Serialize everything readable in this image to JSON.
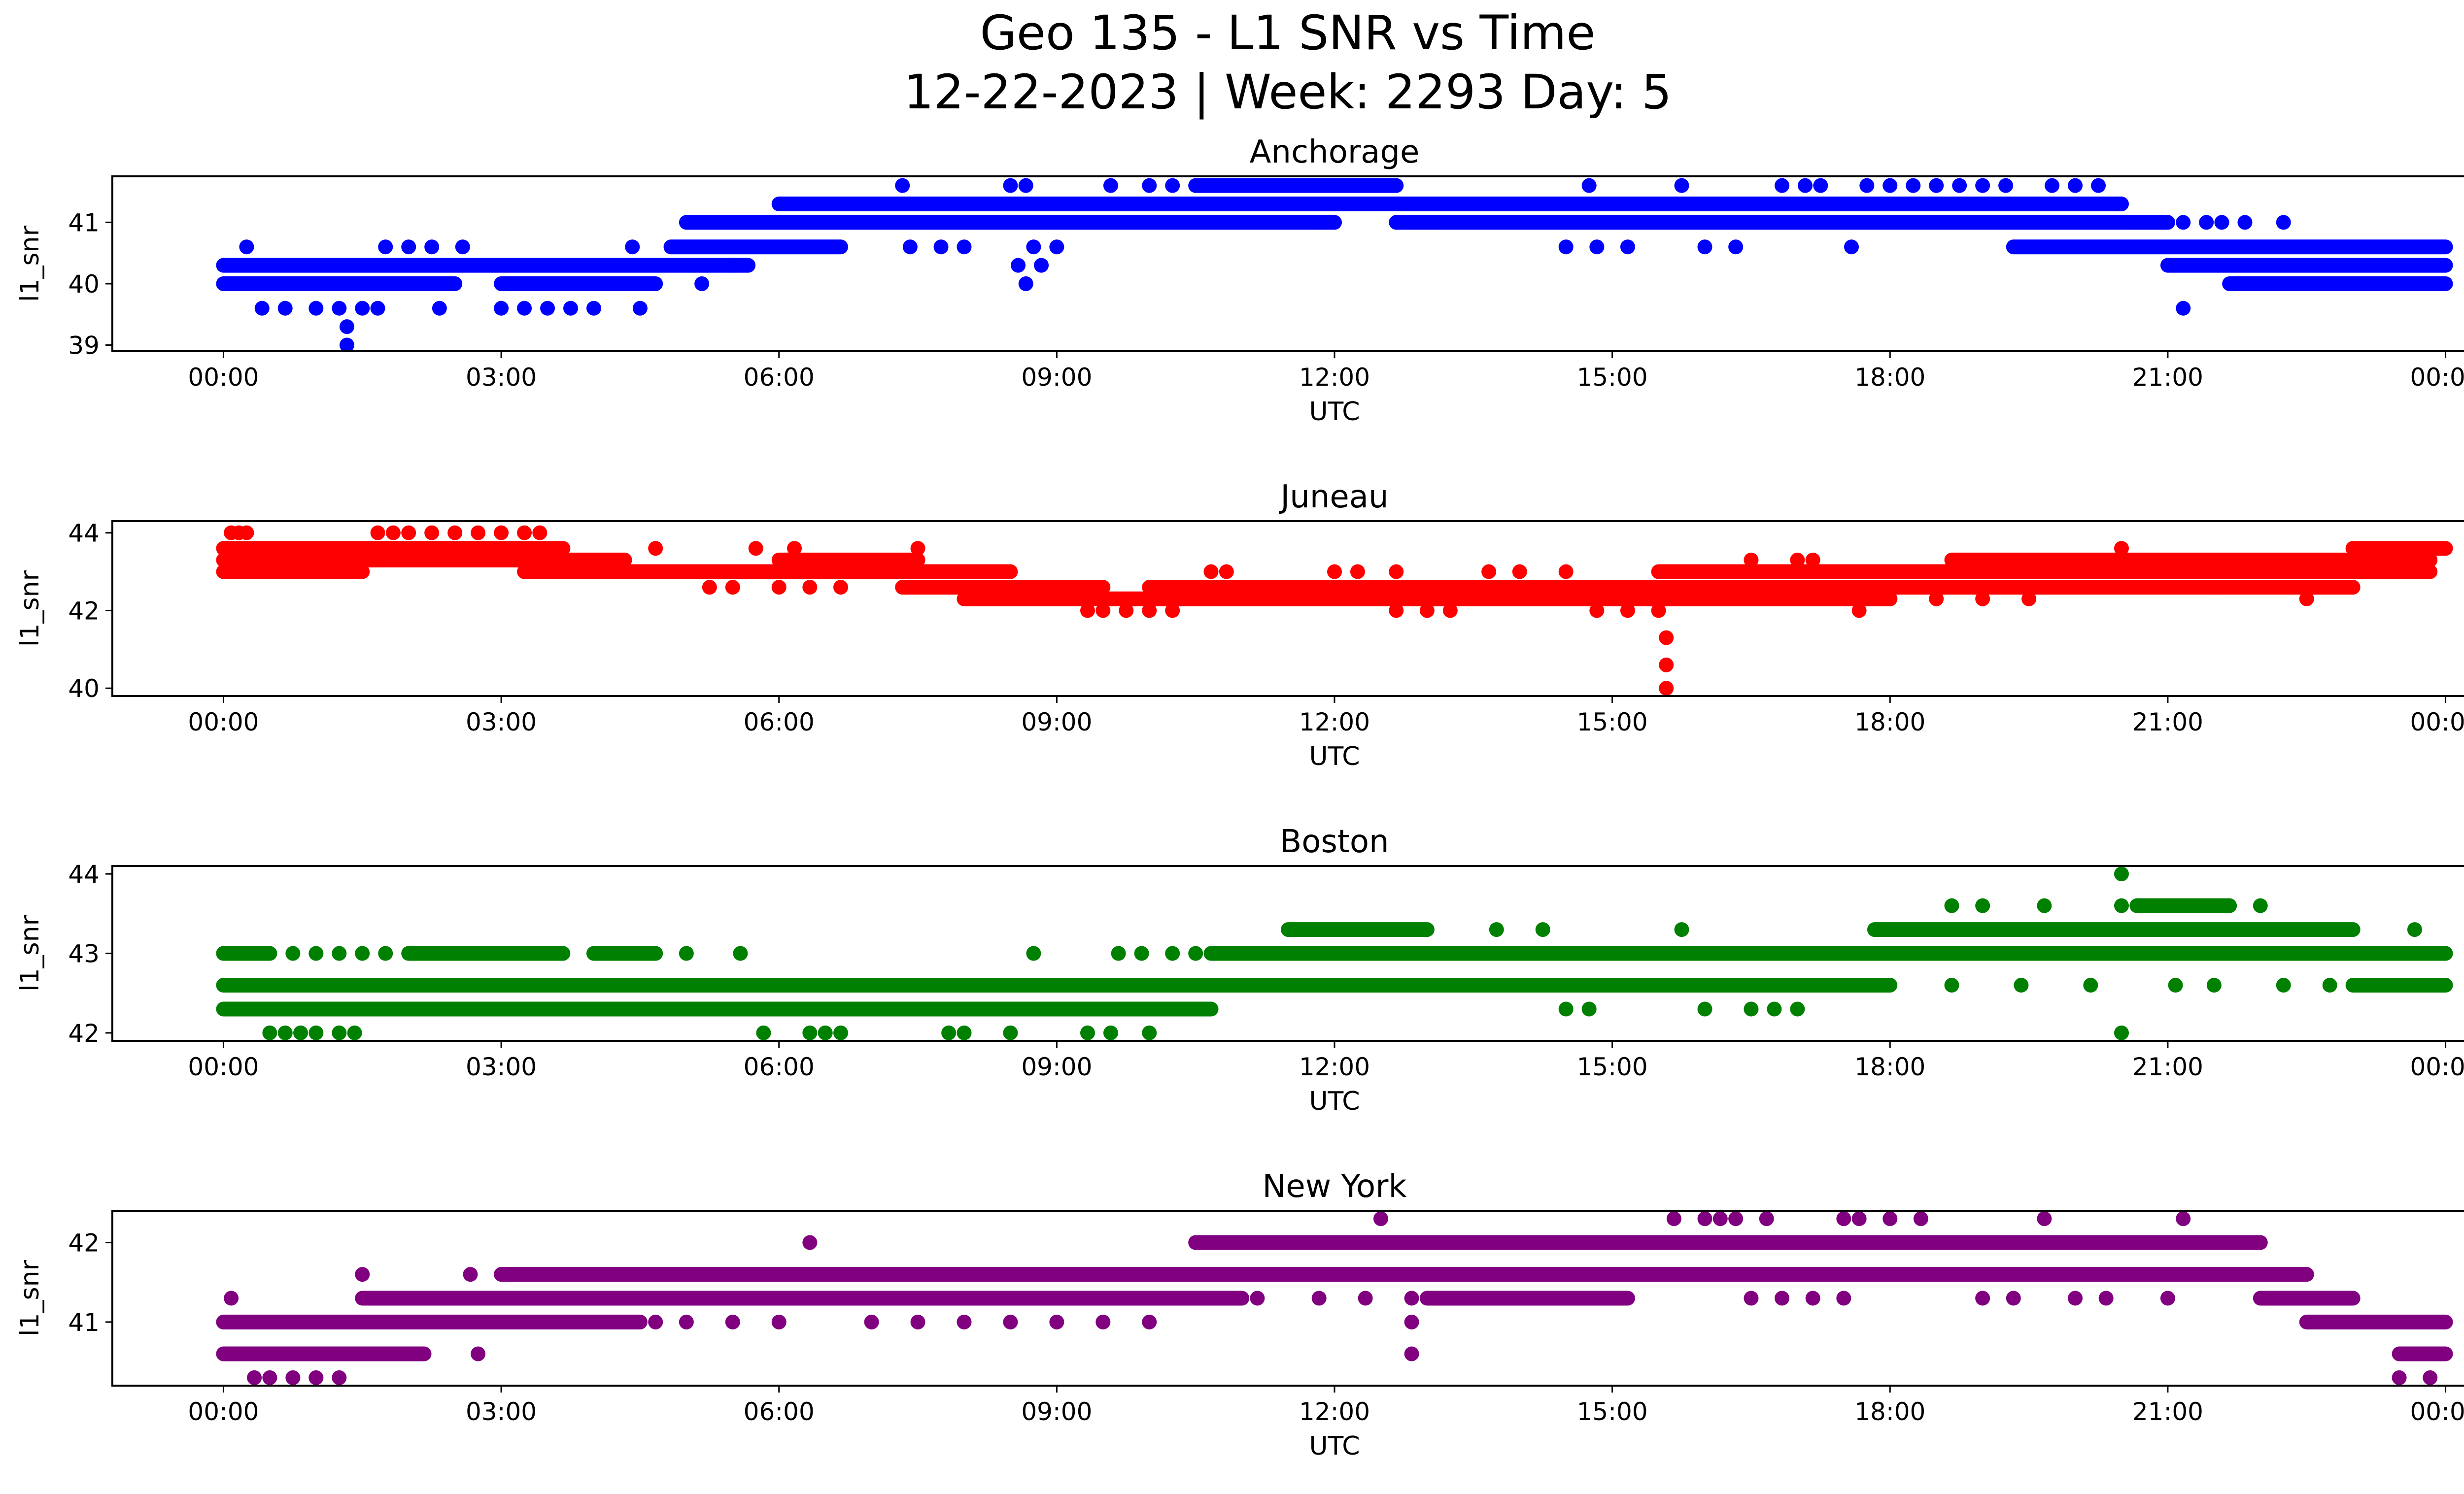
{
  "figure": {
    "title_line1": "Geo 135 - L1 SNR vs Time",
    "title_line2": "12-22-2023 | Week: 2293 Day: 5"
  },
  "chart_data": [
    {
      "type": "scatter",
      "title": "Anchorage",
      "xlabel": "UTC",
      "ylabel": "l1_snr",
      "color": "#0000ff",
      "xlim": [
        "00:00",
        "24:00"
      ],
      "ylim": [
        38.9,
        41.75
      ],
      "xticks": [
        "00:00",
        "03:00",
        "06:00",
        "09:00",
        "12:00",
        "15:00",
        "18:00",
        "21:00",
        "00:00"
      ],
      "yticks": [
        39,
        40,
        41
      ],
      "bands": [
        {
          "y": 40.0,
          "from": "00:00",
          "to": "02:30"
        },
        {
          "y": 40.0,
          "from": "03:00",
          "to": "04:40"
        },
        {
          "y": 40.0,
          "from": "21:40",
          "to": "24:00"
        },
        {
          "y": 40.3,
          "from": "00:00",
          "to": "05:40"
        },
        {
          "y": 40.3,
          "from": "21:00",
          "to": "24:00"
        },
        {
          "y": 40.6,
          "from": "04:50",
          "to": "06:40"
        },
        {
          "y": 40.6,
          "from": "19:20",
          "to": "24:00"
        },
        {
          "y": 41.0,
          "from": "05:00",
          "to": "12:00"
        },
        {
          "y": 41.0,
          "from": "12:40",
          "to": "21:00"
        },
        {
          "y": 41.3,
          "from": "06:00",
          "to": "20:30"
        },
        {
          "y": 41.6,
          "from": "10:30",
          "to": "12:40"
        }
      ],
      "points": [
        [
          "00:15",
          40.6
        ],
        [
          "00:25",
          39.6
        ],
        [
          "00:40",
          39.6
        ],
        [
          "01:00",
          39.6
        ],
        [
          "01:15",
          39.6
        ],
        [
          "01:20",
          39.3
        ],
        [
          "01:20",
          39.0
        ],
        [
          "01:30",
          39.6
        ],
        [
          "01:40",
          39.6
        ],
        [
          "01:45",
          40.6
        ],
        [
          "02:00",
          40.6
        ],
        [
          "02:15",
          40.6
        ],
        [
          "02:20",
          39.6
        ],
        [
          "02:35",
          40.6
        ],
        [
          "03:00",
          39.6
        ],
        [
          "03:15",
          39.6
        ],
        [
          "03:30",
          39.6
        ],
        [
          "03:45",
          39.6
        ],
        [
          "04:00",
          39.6
        ],
        [
          "04:25",
          40.6
        ],
        [
          "04:30",
          39.6
        ],
        [
          "05:10",
          40.0
        ],
        [
          "05:30",
          40.3
        ],
        [
          "07:20",
          41.6
        ],
        [
          "07:25",
          40.6
        ],
        [
          "07:45",
          40.6
        ],
        [
          "08:00",
          40.6
        ],
        [
          "08:30",
          41.6
        ],
        [
          "08:40",
          41.6
        ],
        [
          "08:45",
          40.6
        ],
        [
          "08:35",
          40.3
        ],
        [
          "08:40",
          40.0
        ],
        [
          "08:50",
          40.3
        ],
        [
          "09:00",
          40.6
        ],
        [
          "09:35",
          41.6
        ],
        [
          "10:00",
          41.6
        ],
        [
          "10:15",
          41.6
        ],
        [
          "14:45",
          41.6
        ],
        [
          "14:30",
          40.6
        ],
        [
          "14:50",
          40.6
        ],
        [
          "15:10",
          40.6
        ],
        [
          "15:45",
          41.6
        ],
        [
          "16:00",
          40.6
        ],
        [
          "16:20",
          40.6
        ],
        [
          "16:50",
          41.6
        ],
        [
          "17:05",
          41.6
        ],
        [
          "17:15",
          41.6
        ],
        [
          "17:35",
          40.6
        ],
        [
          "17:45",
          41.6
        ],
        [
          "18:00",
          41.6
        ],
        [
          "18:15",
          41.6
        ],
        [
          "18:30",
          41.6
        ],
        [
          "18:45",
          41.6
        ],
        [
          "19:00",
          41.6
        ],
        [
          "19:15",
          41.6
        ],
        [
          "19:45",
          41.6
        ],
        [
          "20:00",
          41.6
        ],
        [
          "20:15",
          41.6
        ],
        [
          "21:00",
          41.0
        ],
        [
          "21:10",
          41.0
        ],
        [
          "21:10",
          39.6
        ],
        [
          "21:25",
          41.0
        ],
        [
          "21:35",
          41.0
        ],
        [
          "21:50",
          41.0
        ],
        [
          "22:15",
          41.0
        ],
        [
          "22:30",
          40.0
        ]
      ]
    },
    {
      "type": "scatter",
      "title": "Juneau",
      "xlabel": "UTC",
      "ylabel": "l1_snr",
      "color": "#ff0000",
      "xlim": [
        "00:00",
        "24:00"
      ],
      "ylim": [
        39.8,
        44.3
      ],
      "xticks": [
        "00:00",
        "03:00",
        "06:00",
        "09:00",
        "12:00",
        "15:00",
        "18:00",
        "21:00",
        "00:00"
      ],
      "yticks": [
        40,
        42,
        44
      ],
      "bands": [
        {
          "y": 43.0,
          "from": "00:00",
          "to": "01:30"
        },
        {
          "y": 43.0,
          "from": "03:15",
          "to": "08:30"
        },
        {
          "y": 43.0,
          "from": "15:30",
          "to": "23:50"
        },
        {
          "y": 43.3,
          "from": "00:00",
          "to": "04:20"
        },
        {
          "y": 43.3,
          "from": "06:00",
          "to": "07:30"
        },
        {
          "y": 43.3,
          "from": "18:40",
          "to": "23:50"
        },
        {
          "y": 43.6,
          "from": "00:00",
          "to": "03:40"
        },
        {
          "y": 43.6,
          "from": "23:00",
          "to": "24:00"
        },
        {
          "y": 42.6,
          "from": "07:20",
          "to": "09:30"
        },
        {
          "y": 42.6,
          "from": "17:30",
          "to": "23:00"
        },
        {
          "y": 42.3,
          "from": "08:00",
          "to": "18:00"
        },
        {
          "y": 42.6,
          "from": "10:00",
          "to": "17:30"
        }
      ],
      "points": [
        [
          "00:05",
          44.0
        ],
        [
          "00:10",
          44.0
        ],
        [
          "00:15",
          44.0
        ],
        [
          "01:40",
          44.0
        ],
        [
          "01:50",
          44.0
        ],
        [
          "02:00",
          44.0
        ],
        [
          "02:15",
          44.0
        ],
        [
          "02:30",
          44.0
        ],
        [
          "02:45",
          44.0
        ],
        [
          "03:00",
          44.0
        ],
        [
          "03:15",
          44.0
        ],
        [
          "03:25",
          44.0
        ],
        [
          "04:40",
          43.6
        ],
        [
          "05:15",
          42.6
        ],
        [
          "05:30",
          42.6
        ],
        [
          "05:45",
          43.6
        ],
        [
          "06:00",
          42.6
        ],
        [
          "06:10",
          43.6
        ],
        [
          "06:20",
          42.6
        ],
        [
          "06:40",
          42.6
        ],
        [
          "07:30",
          43.6
        ],
        [
          "09:20",
          42.0
        ],
        [
          "09:30",
          42.0
        ],
        [
          "09:45",
          42.0
        ],
        [
          "10:00",
          42.0
        ],
        [
          "10:15",
          42.0
        ],
        [
          "10:40",
          43.0
        ],
        [
          "10:50",
          43.0
        ],
        [
          "12:00",
          43.0
        ],
        [
          "12:15",
          43.0
        ],
        [
          "12:40",
          43.0
        ],
        [
          "12:40",
          42.0
        ],
        [
          "13:00",
          42.0
        ],
        [
          "13:15",
          42.0
        ],
        [
          "13:40",
          43.0
        ],
        [
          "14:00",
          43.0
        ],
        [
          "14:30",
          43.0
        ],
        [
          "14:50",
          42.0
        ],
        [
          "15:10",
          42.0
        ],
        [
          "15:30",
          42.0
        ],
        [
          "15:35",
          41.3
        ],
        [
          "15:35",
          40.6
        ],
        [
          "15:35",
          40.0
        ],
        [
          "16:30",
          43.3
        ],
        [
          "17:00",
          43.3
        ],
        [
          "17:10",
          43.3
        ],
        [
          "17:40",
          42.0
        ],
        [
          "18:00",
          42.3
        ],
        [
          "18:30",
          42.3
        ],
        [
          "19:00",
          42.3
        ],
        [
          "19:30",
          42.3
        ],
        [
          "20:30",
          43.6
        ],
        [
          "21:30",
          42.6
        ],
        [
          "22:30",
          42.3
        ],
        [
          "23:45",
          43.0
        ]
      ]
    },
    {
      "type": "scatter",
      "title": "Boston",
      "xlabel": "UTC",
      "ylabel": "l1_snr",
      "color": "#008000",
      "xlim": [
        "00:00",
        "24:00"
      ],
      "ylim": [
        41.9,
        44.1
      ],
      "xticks": [
        "00:00",
        "03:00",
        "06:00",
        "09:00",
        "12:00",
        "15:00",
        "18:00",
        "21:00",
        "00:00"
      ],
      "yticks": [
        42,
        43,
        44
      ],
      "bands": [
        {
          "y": 42.3,
          "from": "00:00",
          "to": "10:40"
        },
        {
          "y": 42.6,
          "from": "00:00",
          "to": "18:00"
        },
        {
          "y": 42.6,
          "from": "23:00",
          "to": "24:00"
        },
        {
          "y": 43.0,
          "from": "10:40",
          "to": "24:00"
        },
        {
          "y": 43.3,
          "from": "11:30",
          "to": "13:00"
        },
        {
          "y": 43.3,
          "from": "17:50",
          "to": "23:00"
        },
        {
          "y": 43.6,
          "from": "20:40",
          "to": "21:40"
        },
        {
          "y": 43.0,
          "from": "00:00",
          "to": "00:30"
        },
        {
          "y": 43.0,
          "from": "02:00",
          "to": "03:40"
        },
        {
          "y": 43.0,
          "from": "04:00",
          "to": "04:40"
        }
      ],
      "points": [
        [
          "00:45",
          43.0
        ],
        [
          "01:00",
          43.0
        ],
        [
          "01:15",
          43.0
        ],
        [
          "01:30",
          43.0
        ],
        [
          "01:45",
          43.0
        ],
        [
          "05:00",
          43.0
        ],
        [
          "05:35",
          43.0
        ],
        [
          "08:45",
          43.0
        ],
        [
          "09:40",
          43.0
        ],
        [
          "09:55",
          43.0
        ],
        [
          "10:15",
          43.0
        ],
        [
          "10:30",
          43.0
        ],
        [
          "00:30",
          42.0
        ],
        [
          "00:40",
          42.0
        ],
        [
          "00:50",
          42.0
        ],
        [
          "01:00",
          42.0
        ],
        [
          "01:15",
          42.0
        ],
        [
          "01:25",
          42.0
        ],
        [
          "05:50",
          42.0
        ],
        [
          "06:20",
          42.0
        ],
        [
          "06:30",
          42.0
        ],
        [
          "06:40",
          42.0
        ],
        [
          "07:50",
          42.0
        ],
        [
          "08:00",
          42.0
        ],
        [
          "08:30",
          42.0
        ],
        [
          "09:20",
          42.0
        ],
        [
          "09:35",
          42.0
        ],
        [
          "10:00",
          42.0
        ],
        [
          "14:15",
          43.3
        ],
        [
          "13:45",
          43.3
        ],
        [
          "15:45",
          43.3
        ],
        [
          "14:30",
          42.3
        ],
        [
          "14:45",
          42.3
        ],
        [
          "16:00",
          42.3
        ],
        [
          "16:30",
          42.3
        ],
        [
          "16:45",
          42.3
        ],
        [
          "17:00",
          42.3
        ],
        [
          "18:40",
          43.6
        ],
        [
          "19:00",
          43.6
        ],
        [
          "19:40",
          43.6
        ],
        [
          "20:30",
          44.0
        ],
        [
          "20:30",
          43.6
        ],
        [
          "20:30",
          42.0
        ],
        [
          "18:40",
          42.6
        ],
        [
          "19:25",
          42.6
        ],
        [
          "20:10",
          42.6
        ],
        [
          "21:05",
          42.6
        ],
        [
          "21:30",
          42.6
        ],
        [
          "22:00",
          43.6
        ],
        [
          "22:15",
          42.6
        ],
        [
          "22:45",
          42.6
        ],
        [
          "23:40",
          43.3
        ]
      ]
    },
    {
      "type": "scatter",
      "title": "New York",
      "xlabel": "UTC",
      "ylabel": "l1_snr",
      "color": "#800080",
      "xlim": [
        "00:00",
        "24:00"
      ],
      "ylim": [
        40.2,
        42.4
      ],
      "xticks": [
        "00:00",
        "03:00",
        "06:00",
        "09:00",
        "12:00",
        "15:00",
        "18:00",
        "21:00",
        "00:00"
      ],
      "yticks": [
        41,
        42
      ],
      "bands": [
        {
          "y": 40.6,
          "from": "00:00",
          "to": "02:10"
        },
        {
          "y": 40.6,
          "from": "23:30",
          "to": "24:00"
        },
        {
          "y": 41.0,
          "from": "00:00",
          "to": "04:30"
        },
        {
          "y": 41.0,
          "from": "22:30",
          "to": "24:00"
        },
        {
          "y": 41.3,
          "from": "01:30",
          "to": "11:00"
        },
        {
          "y": 41.3,
          "from": "13:00",
          "to": "15:10"
        },
        {
          "y": 41.3,
          "from": "22:00",
          "to": "23:00"
        },
        {
          "y": 41.6,
          "from": "03:00",
          "to": "22:30"
        },
        {
          "y": 42.0,
          "from": "10:30",
          "to": "22:00"
        }
      ],
      "points": [
        [
          "00:05",
          41.3
        ],
        [
          "00:20",
          40.3
        ],
        [
          "00:30",
          40.3
        ],
        [
          "00:45",
          40.3
        ],
        [
          "01:00",
          40.3
        ],
        [
          "01:15",
          40.3
        ],
        [
          "01:30",
          41.6
        ],
        [
          "02:40",
          41.6
        ],
        [
          "02:45",
          40.6
        ],
        [
          "04:40",
          41.0
        ],
        [
          "05:00",
          41.0
        ],
        [
          "05:30",
          41.0
        ],
        [
          "06:00",
          41.0
        ],
        [
          "06:20",
          42.0
        ],
        [
          "07:00",
          41.0
        ],
        [
          "07:30",
          41.0
        ],
        [
          "08:00",
          41.0
        ],
        [
          "08:30",
          41.0
        ],
        [
          "09:00",
          41.0
        ],
        [
          "09:30",
          41.0
        ],
        [
          "10:00",
          41.0
        ],
        [
          "11:10",
          41.3
        ],
        [
          "11:50",
          41.3
        ],
        [
          "12:20",
          41.3
        ],
        [
          "12:30",
          42.3
        ],
        [
          "12:50",
          41.3
        ],
        [
          "12:50",
          41.0
        ],
        [
          "12:50",
          40.6
        ],
        [
          "15:40",
          42.3
        ],
        [
          "16:00",
          42.3
        ],
        [
          "16:10",
          42.3
        ],
        [
          "16:20",
          42.3
        ],
        [
          "16:40",
          42.3
        ],
        [
          "17:30",
          42.3
        ],
        [
          "17:40",
          42.3
        ],
        [
          "18:00",
          42.3
        ],
        [
          "18:20",
          42.3
        ],
        [
          "16:30",
          41.3
        ],
        [
          "16:50",
          41.3
        ],
        [
          "17:10",
          41.3
        ],
        [
          "17:30",
          41.3
        ],
        [
          "19:00",
          41.3
        ],
        [
          "19:20",
          41.3
        ],
        [
          "19:40",
          42.3
        ],
        [
          "20:00",
          41.3
        ],
        [
          "20:20",
          41.3
        ],
        [
          "21:00",
          41.3
        ],
        [
          "21:10",
          42.3
        ],
        [
          "23:30",
          40.3
        ],
        [
          "23:50",
          40.3
        ]
      ]
    }
  ]
}
